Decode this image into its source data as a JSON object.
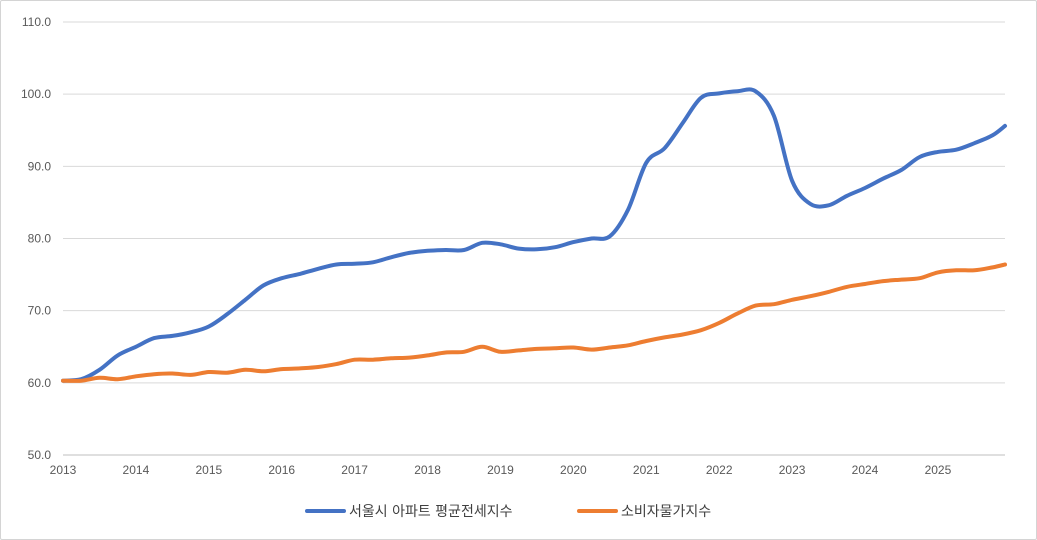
{
  "chart_data": {
    "type": "line",
    "title": "",
    "xlabel": "",
    "ylabel": "",
    "x_tick_labels": [
      "2013",
      "2014",
      "2015",
      "2016",
      "2017",
      "2018",
      "2019",
      "2020",
      "2021",
      "2022",
      "2023",
      "2024",
      "2025"
    ],
    "y_tick_labels": [
      "50.0",
      "60.0",
      "70.0",
      "80.0",
      "90.0",
      "100.0",
      "110.0"
    ],
    "ylim": [
      50,
      110
    ],
    "xlim": [
      2013.0,
      2025.92
    ],
    "grid": "horizontal",
    "legend_position": "bottom",
    "series": [
      {
        "name": "서울시 아파트 평균전세지수",
        "color": "#4472C4",
        "x": [
          2013.0,
          2013.25,
          2013.5,
          2013.75,
          2014.0,
          2014.25,
          2014.5,
          2014.75,
          2015.0,
          2015.25,
          2015.5,
          2015.75,
          2016.0,
          2016.25,
          2016.5,
          2016.75,
          2017.0,
          2017.25,
          2017.5,
          2017.75,
          2018.0,
          2018.25,
          2018.5,
          2018.75,
          2019.0,
          2019.25,
          2019.5,
          2019.75,
          2020.0,
          2020.25,
          2020.5,
          2020.75,
          2021.0,
          2021.25,
          2021.5,
          2021.75,
          2022.0,
          2022.25,
          2022.5,
          2022.75,
          2023.0,
          2023.25,
          2023.5,
          2023.75,
          2024.0,
          2024.25,
          2024.5,
          2024.75,
          2025.0,
          2025.25,
          2025.5,
          2025.75,
          2025.92
        ],
        "values": [
          60.3,
          60.5,
          61.8,
          63.8,
          65.0,
          66.2,
          66.5,
          67.0,
          67.8,
          69.5,
          71.5,
          73.5,
          74.5,
          75.1,
          75.8,
          76.4,
          76.5,
          76.7,
          77.4,
          78.0,
          78.3,
          78.4,
          78.4,
          79.4,
          79.2,
          78.6,
          78.5,
          78.8,
          79.5,
          80.0,
          80.3,
          84.0,
          90.5,
          92.5,
          96.0,
          99.5,
          100.1,
          100.4,
          100.4,
          97.0,
          88.0,
          84.8,
          84.6,
          85.9,
          87.0,
          88.3,
          89.5,
          91.3,
          92.0,
          92.3,
          93.2,
          94.3,
          95.6
        ]
      },
      {
        "name": "소비자물가지수",
        "color": "#ED7D31",
        "x": [
          2013.0,
          2013.25,
          2013.5,
          2013.75,
          2014.0,
          2014.25,
          2014.5,
          2014.75,
          2015.0,
          2015.25,
          2015.5,
          2015.75,
          2016.0,
          2016.25,
          2016.5,
          2016.75,
          2017.0,
          2017.25,
          2017.5,
          2017.75,
          2018.0,
          2018.25,
          2018.5,
          2018.75,
          2019.0,
          2019.25,
          2019.5,
          2019.75,
          2020.0,
          2020.25,
          2020.5,
          2020.75,
          2021.0,
          2021.25,
          2021.5,
          2021.75,
          2022.0,
          2022.25,
          2022.5,
          2022.75,
          2023.0,
          2023.25,
          2023.5,
          2023.75,
          2024.0,
          2024.25,
          2024.5,
          2024.75,
          2025.0,
          2025.25,
          2025.5,
          2025.75,
          2025.92
        ],
        "values": [
          60.3,
          60.3,
          60.7,
          60.5,
          60.9,
          61.2,
          61.3,
          61.1,
          61.5,
          61.4,
          61.8,
          61.6,
          61.9,
          62.0,
          62.2,
          62.6,
          63.2,
          63.2,
          63.4,
          63.5,
          63.8,
          64.2,
          64.3,
          65.0,
          64.3,
          64.5,
          64.7,
          64.8,
          64.9,
          64.6,
          64.9,
          65.2,
          65.8,
          66.3,
          66.7,
          67.3,
          68.3,
          69.6,
          70.7,
          70.9,
          71.5,
          72.0,
          72.6,
          73.3,
          73.7,
          74.1,
          74.3,
          74.5,
          75.3,
          75.6,
          75.6,
          76.0,
          76.4
        ]
      }
    ]
  }
}
